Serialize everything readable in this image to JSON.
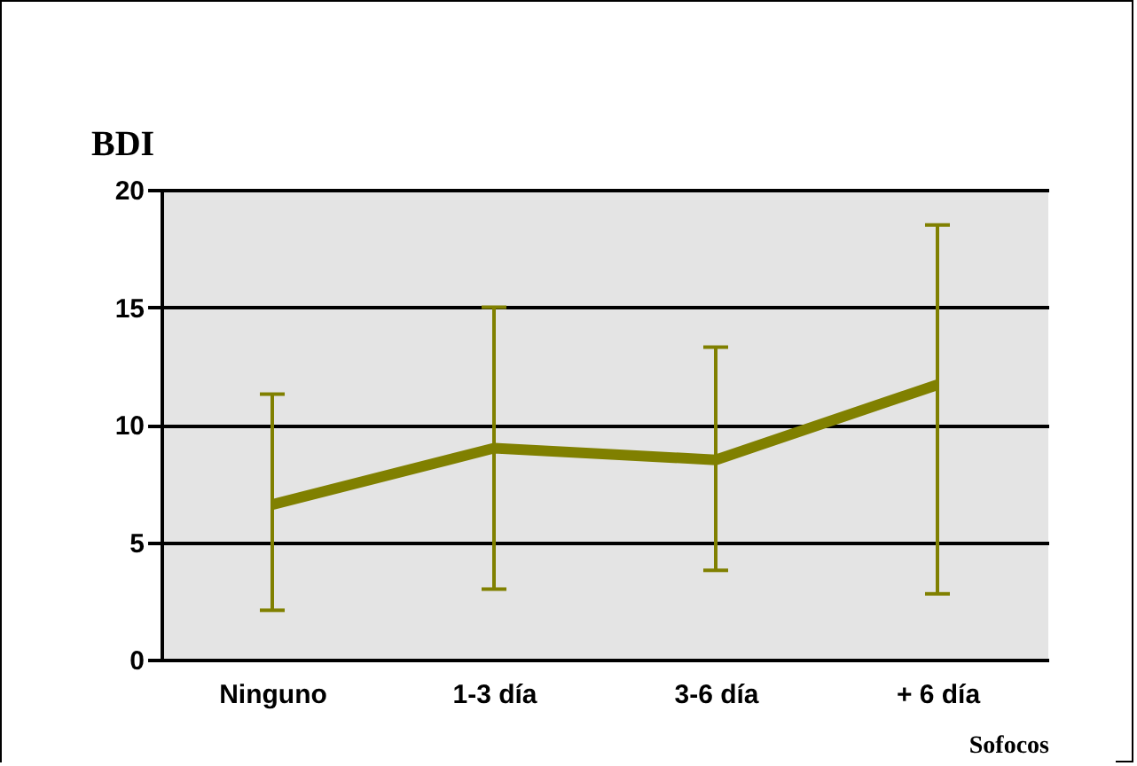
{
  "chart_data": {
    "type": "line",
    "ylabel": "BDI",
    "xlabel": "Sofocos",
    "categories": [
      "Ninguno",
      "1-3 día",
      "3-6 día",
      "+ 6 día"
    ],
    "series": [
      {
        "color": "#808000",
        "values": [
          6.6,
          9.0,
          8.5,
          11.7
        ],
        "errors": [
          [
            2.1,
            11.3
          ],
          [
            3.0,
            15.0
          ],
          [
            3.8,
            13.3
          ],
          [
            2.8,
            18.5
          ]
        ]
      }
    ],
    "ylim": [
      0,
      20
    ],
    "yticks": [
      0,
      5,
      10,
      15,
      20
    ],
    "grid": "y"
  }
}
